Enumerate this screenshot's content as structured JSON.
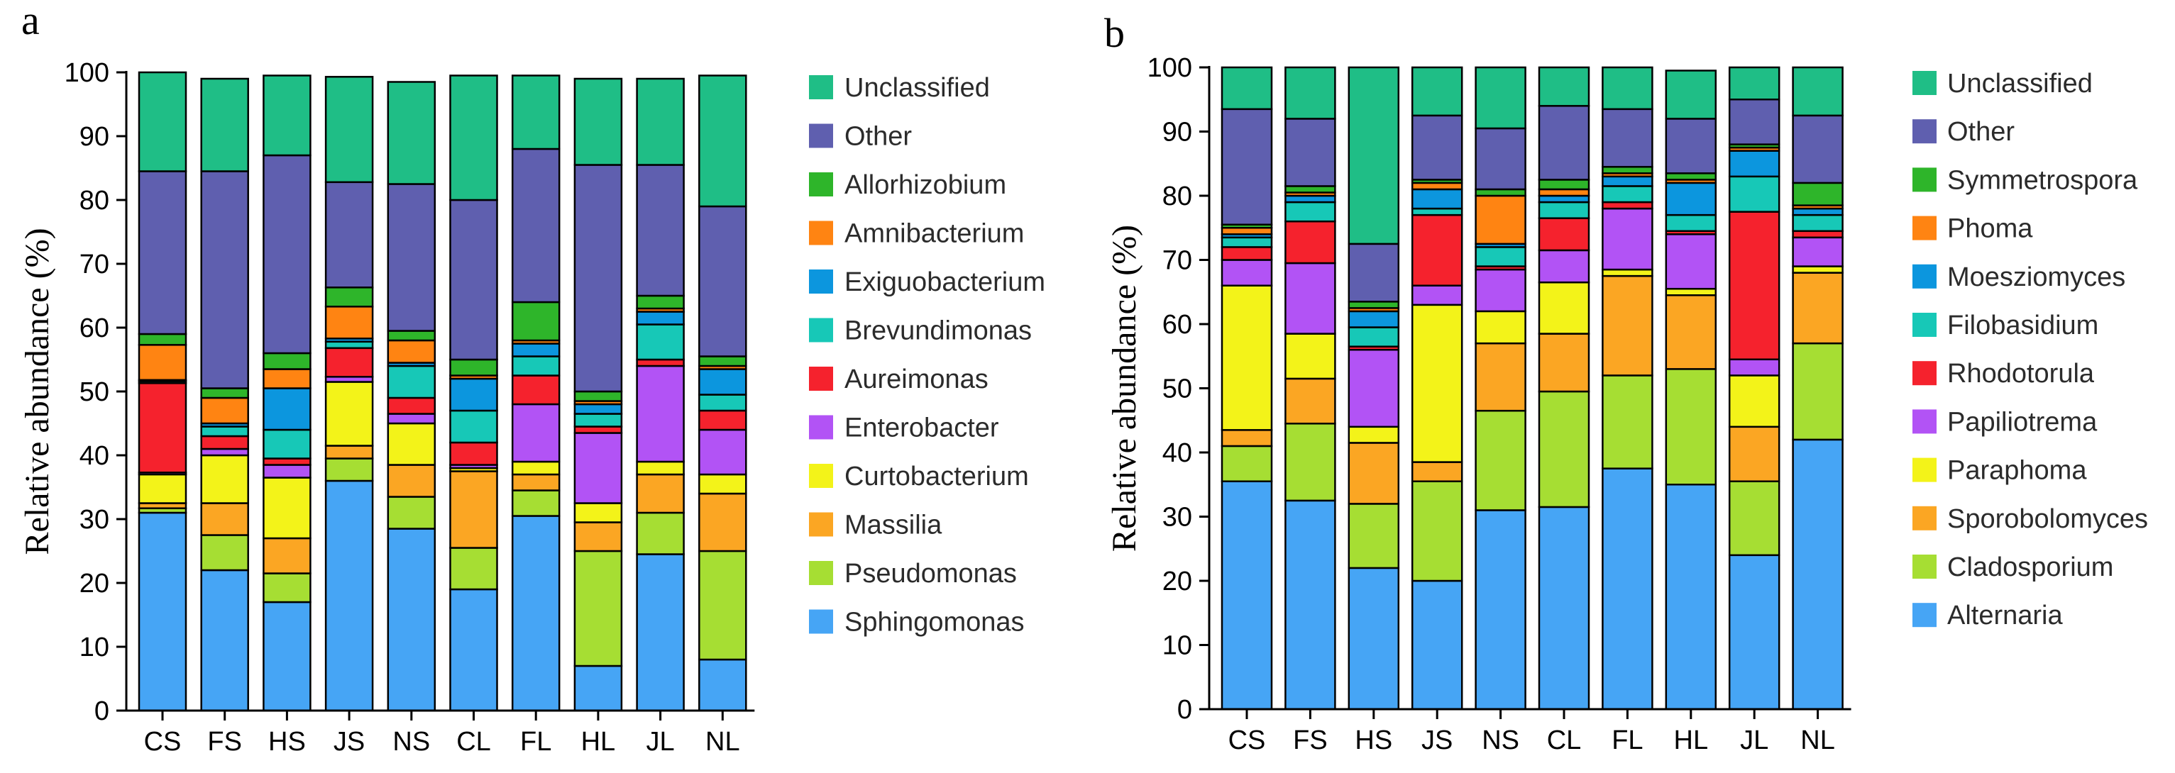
{
  "colors": {
    "Unclassified": "#1FBE86",
    "Other": "#5F5FAF",
    "Allorhizobium": "#2EB52A",
    "Symmetrospora": "#2EB52A",
    "Amnibacterium": "#FF8412",
    "Phoma": "#FF8412",
    "Exiguobacterium": "#0C96DE",
    "Moesziomyces": "#0C96DE",
    "Brevundimonas": "#17C8B7",
    "Filobasidium": "#17C8B7",
    "Aureimonas": "#F5222D",
    "Rhodotorula": "#F5222D",
    "Enterobacter": "#B253F5",
    "Papiliotrema": "#B253F5",
    "Curtobacterium": "#F3F319",
    "Paraphoma": "#F3F319",
    "Massilia": "#FBA623",
    "Sporobolomyces": "#FBA623",
    "Pseudomonas": "#A6DE33",
    "Cladosporium": "#A6DE33",
    "Sphingomonas": "#46A5F5",
    "Alternaria": "#46A5F5"
  },
  "chart_data": [
    {
      "panel": "a",
      "type": "bar",
      "stacked": true,
      "ylabel": "Relative abundance (%)",
      "xlabel": "",
      "ylim": [
        0,
        100
      ],
      "yticks": [
        0,
        10,
        20,
        30,
        40,
        50,
        60,
        70,
        80,
        90,
        100
      ],
      "categories": [
        "CS",
        "FS",
        "HS",
        "JS",
        "NS",
        "CL",
        "FL",
        "HL",
        "JL",
        "NL"
      ],
      "legend_position": "right",
      "legend": [
        "Unclassified",
        "Other",
        "Allorhizobium",
        "Amnibacterium",
        "Exiguobacterium",
        "Brevundimonas",
        "Aureimonas",
        "Enterobacter",
        "Curtobacterium",
        "Massilia",
        "Pseudomonas",
        "Sphingomonas"
      ],
      "series": [
        {
          "name": "Sphingomonas",
          "values": [
            31.0,
            22.0,
            17.0,
            36.0,
            28.5,
            19.0,
            30.5,
            7.0,
            24.5,
            8.0
          ]
        },
        {
          "name": "Pseudomonas",
          "values": [
            0.7,
            5.5,
            4.5,
            3.5,
            5.0,
            6.5,
            4.0,
            18.0,
            6.5,
            17.0
          ]
        },
        {
          "name": "Massilia",
          "values": [
            0.8,
            5.0,
            5.5,
            2.0,
            5.0,
            12.0,
            2.5,
            4.5,
            6.0,
            9.0
          ]
        },
        {
          "name": "Curtobacterium",
          "values": [
            4.5,
            7.5,
            9.5,
            10.0,
            6.5,
            0.5,
            2.0,
            3.0,
            2.0,
            3.0
          ]
        },
        {
          "name": "Enterobacter",
          "values": [
            0.3,
            1.0,
            2.0,
            0.8,
            1.5,
            0.5,
            9.0,
            11.0,
            15.0,
            7.0
          ]
        },
        {
          "name": "Aureimonas",
          "values": [
            14.0,
            2.0,
            1.0,
            4.5,
            2.5,
            3.5,
            4.5,
            1.0,
            1.0,
            3.0
          ]
        },
        {
          "name": "Brevundimonas",
          "values": [
            0.3,
            1.5,
            4.5,
            1.0,
            5.0,
            5.0,
            3.0,
            2.0,
            5.5,
            2.5
          ]
        },
        {
          "name": "Exiguobacterium",
          "values": [
            0.2,
            0.5,
            6.5,
            0.5,
            0.5,
            5.0,
            2.0,
            1.5,
            2.0,
            4.0
          ]
        },
        {
          "name": "Amnibacterium",
          "values": [
            5.5,
            4.0,
            3.0,
            5.0,
            3.5,
            0.5,
            0.5,
            0.5,
            0.5,
            0.5
          ]
        },
        {
          "name": "Allorhizobium",
          "values": [
            1.7,
            1.5,
            2.5,
            3.0,
            1.5,
            2.5,
            6.0,
            1.5,
            2.0,
            1.5
          ]
        },
        {
          "name": "Other",
          "values": [
            25.5,
            34.0,
            31.0,
            16.5,
            23.0,
            25.0,
            24.0,
            35.5,
            20.5,
            23.5
          ]
        },
        {
          "name": "Unclassified",
          "values": [
            15.5,
            14.5,
            12.5,
            16.5,
            16.0,
            19.5,
            11.5,
            13.5,
            13.5,
            20.5
          ]
        }
      ]
    },
    {
      "panel": "b",
      "type": "bar",
      "stacked": true,
      "ylabel": "Relative abundance (%)",
      "xlabel": "",
      "ylim": [
        0,
        100
      ],
      "yticks": [
        0,
        10,
        20,
        30,
        40,
        50,
        60,
        70,
        80,
        90,
        100
      ],
      "categories": [
        "CS",
        "FS",
        "HS",
        "JS",
        "NS",
        "CL",
        "FL",
        "HL",
        "JL",
        "NL"
      ],
      "legend_position": "right",
      "legend": [
        "Unclassified",
        "Other",
        "Symmetrospora",
        "Phoma",
        "Moesziomyces",
        "Filobasidium",
        "Rhodotorula",
        "Papiliotrema",
        "Paraphoma",
        "Sporobolomyces",
        "Cladosporium",
        "Alternaria"
      ],
      "series": [
        {
          "name": "Alternaria",
          "values": [
            35.5,
            32.5,
            22.0,
            20.0,
            31.0,
            31.5,
            37.5,
            35.0,
            24.0,
            42.0
          ]
        },
        {
          "name": "Cladosporium",
          "values": [
            5.5,
            12.0,
            10.0,
            15.5,
            15.5,
            18.0,
            14.5,
            18.0,
            11.5,
            15.0
          ]
        },
        {
          "name": "Sporobolomyces",
          "values": [
            2.5,
            7.0,
            9.5,
            3.0,
            10.5,
            9.0,
            15.5,
            11.5,
            8.5,
            11.0
          ]
        },
        {
          "name": "Paraphoma",
          "values": [
            22.5,
            7.0,
            2.5,
            24.5,
            5.0,
            8.0,
            1.0,
            1.0,
            8.0,
            1.0
          ]
        },
        {
          "name": "Papiliotrema",
          "values": [
            4.0,
            11.0,
            12.0,
            3.0,
            6.5,
            5.0,
            9.5,
            8.5,
            2.5,
            4.5
          ]
        },
        {
          "name": "Rhodotorula",
          "values": [
            2.0,
            6.5,
            0.5,
            11.0,
            0.5,
            5.0,
            1.0,
            0.5,
            23.0,
            1.0
          ]
        },
        {
          "name": "Filobasidium",
          "values": [
            1.5,
            3.0,
            3.0,
            1.0,
            3.0,
            2.5,
            2.5,
            2.5,
            5.5,
            2.5
          ]
        },
        {
          "name": "Moesziomyces",
          "values": [
            0.5,
            1.0,
            2.5,
            3.0,
            0.5,
            1.0,
            1.5,
            5.0,
            4.0,
            1.0
          ]
        },
        {
          "name": "Phoma",
          "values": [
            1.0,
            0.5,
            0.5,
            1.0,
            7.5,
            1.0,
            0.5,
            0.5,
            0.5,
            0.5
          ]
        },
        {
          "name": "Symmetrospora",
          "values": [
            0.5,
            1.0,
            1.0,
            0.5,
            1.0,
            1.5,
            1.0,
            1.0,
            0.5,
            3.5
          ]
        },
        {
          "name": "Other",
          "values": [
            18.0,
            10.5,
            9.0,
            10.0,
            9.5,
            11.5,
            9.0,
            8.5,
            7.0,
            10.5
          ]
        },
        {
          "name": "Unclassified",
          "values": [
            6.5,
            8.0,
            27.5,
            7.5,
            9.5,
            6.0,
            6.5,
            7.5,
            5.0,
            7.5
          ]
        }
      ]
    }
  ]
}
